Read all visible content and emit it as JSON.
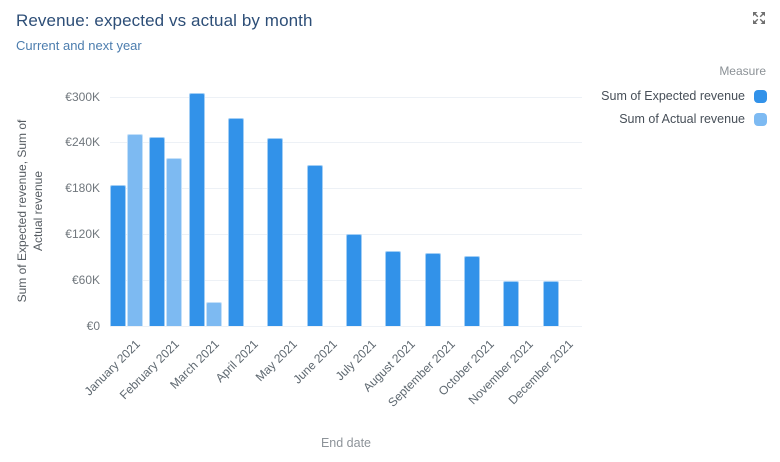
{
  "header": {
    "title": "Revenue: expected vs actual by month",
    "subtitle": "Current and next year"
  },
  "controls": {
    "expand_tooltip": "Expand"
  },
  "legend": {
    "title": "Measure",
    "items": [
      {
        "label": "Sum of Expected revenue",
        "color": "#3292e9"
      },
      {
        "label": "Sum of Actual revenue",
        "color": "#7dbaf2"
      }
    ]
  },
  "chart_data": {
    "type": "bar",
    "title": "Revenue: expected vs actual by month",
    "subtitle": "Current and next year",
    "xlabel": "End date",
    "ylabel": "Sum of Expected revenue, Sum of Actual revenue",
    "ylabel_lines": [
      "Sum of Expected revenue, Sum of",
      "Actual revenue"
    ],
    "categories": [
      "January 2021",
      "February 2021",
      "March 2021",
      "April 2021",
      "May 2021",
      "June 2021",
      "July 2021",
      "August 2021",
      "September 2021",
      "October 2021",
      "November 2021",
      "December 2021"
    ],
    "series": [
      {
        "key": "expected",
        "name": "Sum of Expected revenue",
        "color": "#3292e9",
        "values": [
          185000,
          248000,
          305000,
          273000,
          247000,
          211000,
          120000,
          98000,
          96000,
          92000,
          59000,
          59000
        ]
      },
      {
        "key": "actual",
        "name": "Sum of Actual revenue",
        "color": "#7dbaf2",
        "values": [
          252000,
          220000,
          31000,
          null,
          null,
          null,
          null,
          null,
          null,
          null,
          null,
          null
        ]
      }
    ],
    "currency": "EUR",
    "ylim": [
      0,
      300000
    ],
    "yticks": [
      {
        "value": 0,
        "label": "€0"
      },
      {
        "value": 60000,
        "label": "€60K"
      },
      {
        "value": 120000,
        "label": "€120K"
      },
      {
        "value": 180000,
        "label": "€180K"
      },
      {
        "value": 240000,
        "label": "€240K"
      },
      {
        "value": 300000,
        "label": "€300K"
      }
    ],
    "grid": true,
    "legend_position": "top-right"
  },
  "colors": {
    "expected_bar": "#3292e9",
    "actual_bar": "#7dbaf2",
    "gridline": "#edf1f6",
    "title_text": "#2d4e77",
    "subtitle_text": "#4c7dae",
    "axis_text": "#5e6870"
  }
}
